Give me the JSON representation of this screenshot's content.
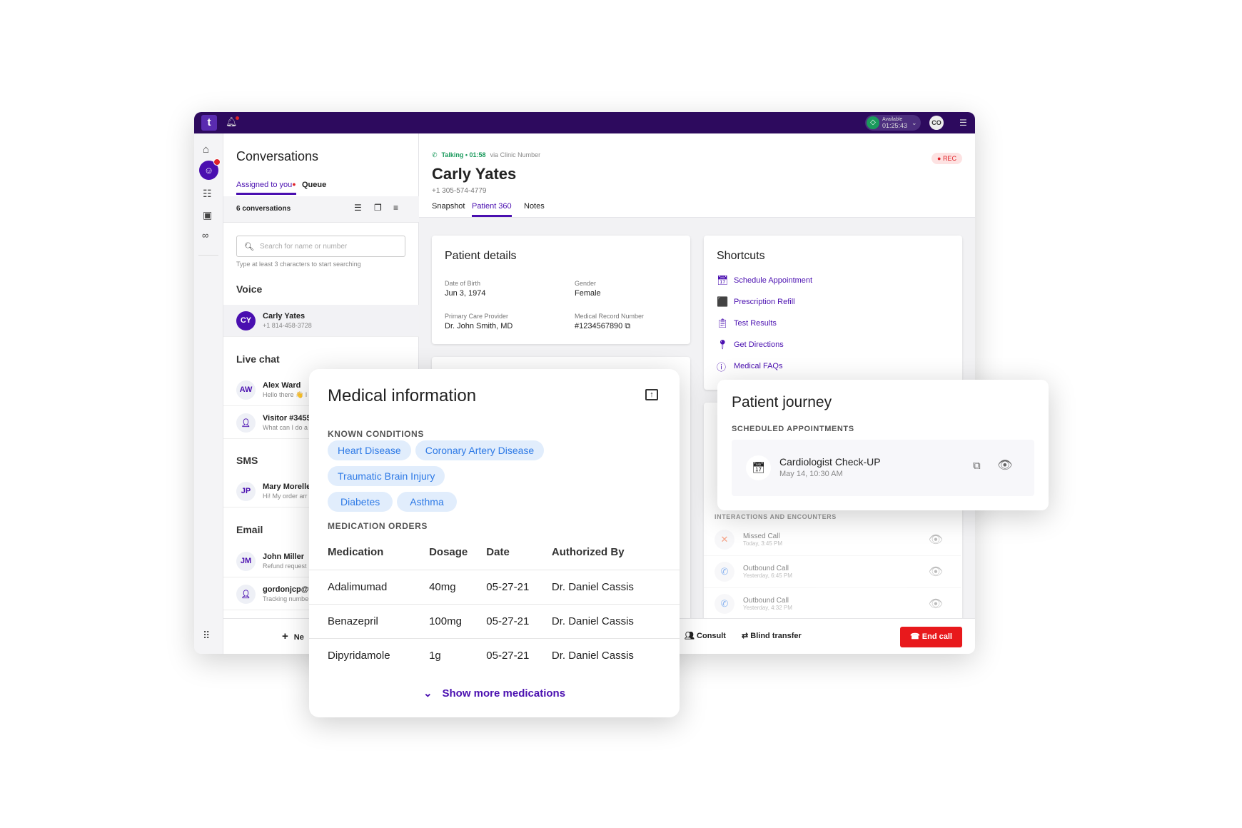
{
  "topbar": {
    "logo": "t",
    "status": "Available",
    "status_time": "01:25:43",
    "user_initials": "CO",
    "icons": [
      "bell-icon",
      "panel-icon"
    ]
  },
  "rail": {
    "items": [
      "home",
      "conversations",
      "queue",
      "contacts",
      "voicemail",
      "apps"
    ],
    "badge_color": "#e0242a"
  },
  "conversations": {
    "title": "Conversations",
    "tabs": [
      "Assigned to you",
      "Queue"
    ],
    "count": "6 conversations",
    "search_placeholder": "Search for name or number",
    "search_hint": "Type at least 3 characters to start searching",
    "new_label": "Ne",
    "groups": [
      {
        "name": "Voice",
        "items": [
          {
            "initials": "CY",
            "name": "Carly Yates",
            "preview": "+1 814-458-3728"
          }
        ]
      },
      {
        "name": "Live chat",
        "items": [
          {
            "initials": "AW",
            "name": "Alex Ward",
            "preview": "Hello there 👋 I"
          },
          {
            "initials": "",
            "name": "Visitor #3455",
            "preview": "What can I do a"
          }
        ]
      },
      {
        "name": "SMS",
        "items": [
          {
            "initials": "JP",
            "name": "Mary Morelle",
            "preview": "Hi! My order arr"
          }
        ]
      },
      {
        "name": "Email",
        "items": [
          {
            "initials": "JM",
            "name": "John Miller",
            "preview": "Refund request"
          },
          {
            "initials": "",
            "name": "gordonjcp@y",
            "preview": "Tracking numbe"
          }
        ]
      }
    ]
  },
  "call": {
    "status": "Talking • 01:58",
    "via": "via Clinic Number",
    "name": "Carly Yates",
    "phone": "+1 305-574-4779",
    "rec": "REC",
    "tabs": [
      "Snapshot",
      "Patient 360",
      "Notes"
    ],
    "active_tab": "Patient 360"
  },
  "patient_details": {
    "title": "Patient details",
    "fields": [
      {
        "label": "Date of Birth",
        "value": "Jun 3, 1974"
      },
      {
        "label": "Gender",
        "value": "Female"
      },
      {
        "label": "Primary Care Provider",
        "value": "Dr. John Smith, MD"
      },
      {
        "label": "Medical Record Number",
        "value": "#1234567890"
      }
    ]
  },
  "shortcuts": {
    "title": "Shortcuts",
    "items": [
      {
        "label": "Schedule Appointment",
        "icon": "calendar-stethoscope-icon"
      },
      {
        "label": "Prescription Refill",
        "icon": "pill-bottle-icon"
      },
      {
        "label": "Test Results",
        "icon": "clipboard-icon"
      },
      {
        "label": "Get Directions",
        "icon": "location-pin-icon"
      },
      {
        "label": "Medical FAQs",
        "icon": "info-icon"
      }
    ]
  },
  "interactions": {
    "title": "INTERACTIONS AND ENCOUNTERS",
    "items": [
      {
        "title": "Missed Call",
        "time": "Today, 3:45 PM"
      },
      {
        "title": "Outbound Call",
        "time": "Yesterday, 6:45 PM"
      },
      {
        "title": "Outbound Call",
        "time": "Yesterday, 4:32 PM"
      }
    ]
  },
  "footer": {
    "consult": "Consult",
    "blind_transfer": "Blind transfer",
    "end_call": "End call"
  },
  "medical": {
    "title": "Medical information",
    "conditions_title": "KNOWN CONDITIONS",
    "conditions": [
      "Heart Disease",
      "Coronary Artery Disease",
      "Traumatic Brain Injury",
      "Diabetes",
      "Asthma"
    ],
    "orders_title": "MEDICATION ORDERS",
    "columns": [
      "Medication",
      "Dosage",
      "Date",
      "Authorized By"
    ],
    "rows": [
      [
        "Adalimumad",
        "40mg",
        "05-27-21",
        "Dr. Daniel Cassis"
      ],
      [
        "Benazepril",
        "100mg",
        "05-27-21",
        "Dr. Daniel Cassis"
      ],
      [
        "Dipyridamole",
        "1g",
        "05-27-21",
        "Dr. Daniel Cassis"
      ]
    ],
    "show_more": "Show more medications"
  },
  "journey": {
    "title": "Patient journey",
    "section": "SCHEDULED APPOINTMENTS",
    "appointment": {
      "title": "Cardiologist Check-UP",
      "time": "May 14, 10:30 AM"
    }
  },
  "colors": {
    "brand": "#2d0a5e",
    "accent": "#4a0fb0",
    "available": "#1a9a5c",
    "end_call": "#e8191c",
    "chip_bg": "#e1edfc",
    "chip_text": "#2e7ae6"
  }
}
